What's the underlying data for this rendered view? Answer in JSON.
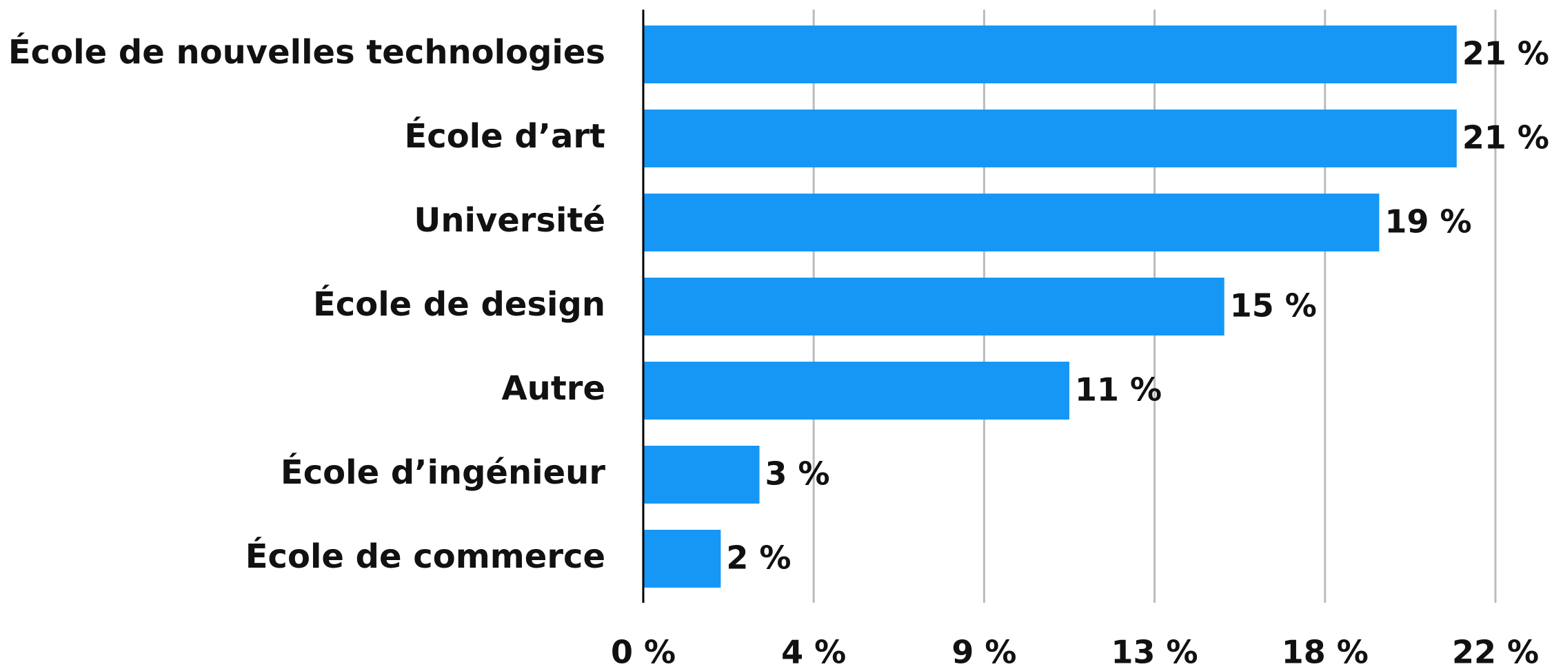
{
  "chart_data": {
    "type": "bar",
    "orientation": "horizontal",
    "categories": [
      "École de nouvelles technologies",
      "École d’art",
      "Université",
      "École de design",
      "Autre",
      "École d’ingénieur",
      "École de commerce"
    ],
    "values": [
      21,
      21,
      19,
      15,
      11,
      3,
      2
    ],
    "value_labels": [
      "21 %",
      "21 %",
      "19 %",
      "15 %",
      "11 %",
      "3 %",
      "2 %"
    ],
    "color": "#1697f6",
    "xlim": [
      0,
      22
    ],
    "xticks": [
      {
        "value": 0,
        "label": "0 %"
      },
      {
        "value": 4.4,
        "label": "4 %"
      },
      {
        "value": 8.8,
        "label": "9 %"
      },
      {
        "value": 13.2,
        "label": "13 %"
      },
      {
        "value": 17.6,
        "label": "18 %"
      },
      {
        "value": 22,
        "label": "22 %"
      }
    ],
    "grid": true
  }
}
